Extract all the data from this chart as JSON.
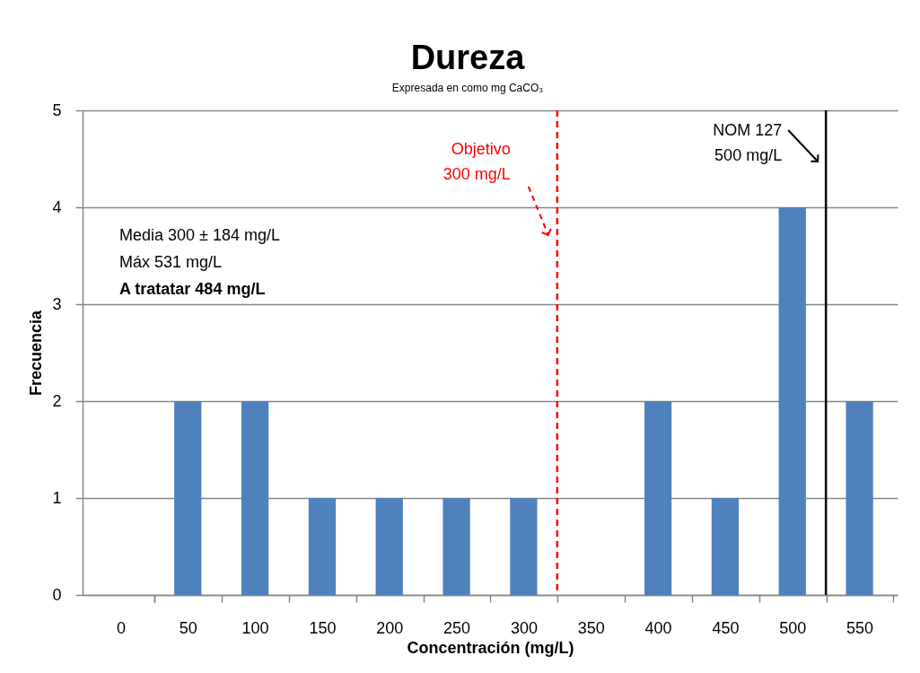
{
  "chart_data": {
    "type": "bar",
    "title": "Dureza",
    "subtitle": "Expresada en como mg CaCO₃",
    "xlabel": "Concentración (mg/L)",
    "ylabel": "Frecuencia",
    "x": [
      0,
      50,
      100,
      150,
      200,
      250,
      300,
      350,
      400,
      450,
      500,
      550
    ],
    "values": [
      0,
      2,
      2,
      1,
      1,
      1,
      1,
      0,
      2,
      1,
      4,
      2
    ],
    "color": "#4f81bd",
    "xlim": [
      -25,
      575
    ],
    "xticks": [
      0,
      50,
      100,
      150,
      200,
      250,
      300,
      350,
      400,
      450,
      500,
      550
    ],
    "ylim": [
      0,
      5
    ],
    "yticks": [
      0,
      1,
      2,
      3,
      4,
      5
    ],
    "grid": "y",
    "ref_lines": [
      {
        "axis": "x",
        "value": 325,
        "label": "Objetivo\n300 mg/L",
        "color": "#ff0000",
        "line_style": "dashed"
      },
      {
        "axis": "x",
        "value": 525,
        "label": "NOM 127\n500 mg/L",
        "color": "#000000",
        "line_style": "solid"
      }
    ],
    "annotations": [
      "Media 300 ± 184 mg/L",
      "Máx 531 mg/L",
      "A tratatar 484 mg/L"
    ]
  }
}
